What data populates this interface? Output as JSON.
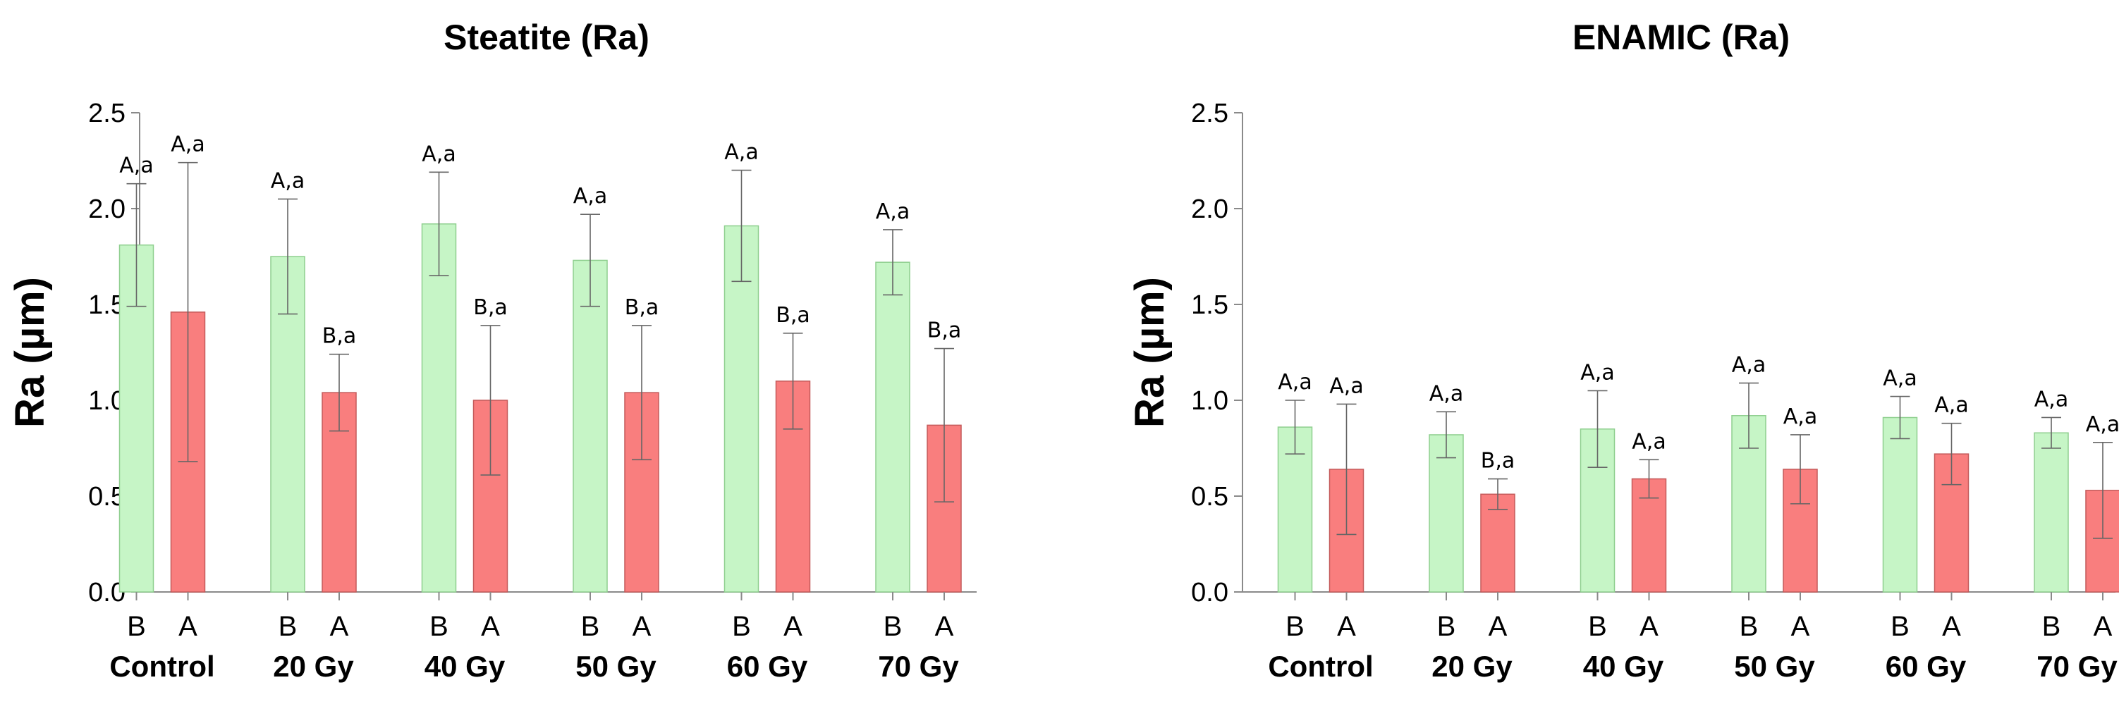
{
  "chart_data": [
    {
      "type": "bar",
      "title": "Steatite (Ra)",
      "ylabel": "Ra  (µm)",
      "xlabel": "",
      "ylim": [
        0,
        2.5
      ],
      "yticks": [
        "0.0",
        "0.5",
        "1.0",
        "1.5",
        "2.0",
        "2.5"
      ],
      "groups": [
        "Control",
        "20 Gy",
        "40 Gy",
        "50 Gy",
        "60 Gy",
        "70 Gy"
      ],
      "series": [
        {
          "name": "B",
          "color": "#c6f5c6",
          "edge": "#8fcf8f",
          "values": [
            1.81,
            1.75,
            1.92,
            1.73,
            1.91,
            1.72
          ],
          "errors": [
            0.32,
            0.3,
            0.27,
            0.24,
            0.29,
            0.17
          ],
          "labels": [
            "A,a",
            "A,a",
            "A,a",
            "A,a",
            "A,a",
            "A,a"
          ]
        },
        {
          "name": "A",
          "color": "#f97e7e",
          "edge": "#c45a5a",
          "values": [
            1.46,
            1.04,
            1.0,
            1.04,
            1.1,
            0.87
          ],
          "errors": [
            0.78,
            0.2,
            0.39,
            0.35,
            0.25,
            0.4
          ],
          "labels": [
            "A,a",
            "B,a",
            "B,a",
            "B,a",
            "B,a",
            "B,a"
          ]
        }
      ]
    },
    {
      "type": "bar",
      "title": "ENAMIC (Ra)",
      "ylabel": "Ra  (µm)",
      "xlabel": "",
      "ylim": [
        0,
        2.5
      ],
      "yticks": [
        "0.0",
        "0.5",
        "1.0",
        "1.5",
        "2.0",
        "2.5"
      ],
      "groups": [
        "Control",
        "20 Gy",
        "40 Gy",
        "50 Gy",
        "60 Gy",
        "70 Gy"
      ],
      "series": [
        {
          "name": "B",
          "color": "#c6f5c6",
          "edge": "#8fcf8f",
          "values": [
            0.86,
            0.82,
            0.85,
            0.92,
            0.91,
            0.83
          ],
          "errors": [
            0.14,
            0.12,
            0.2,
            0.17,
            0.11,
            0.08
          ],
          "labels": [
            "A,a",
            "A,a",
            "A,a",
            "A,a",
            "A,a",
            "A,a"
          ]
        },
        {
          "name": "A",
          "color": "#f97e7e",
          "edge": "#c45a5a",
          "values": [
            0.64,
            0.51,
            0.59,
            0.64,
            0.72,
            0.53
          ],
          "errors": [
            0.34,
            0.08,
            0.1,
            0.18,
            0.16,
            0.25
          ],
          "labels": [
            "A,a",
            "B,a",
            "A,a",
            "A,a",
            "A,a",
            "A,a"
          ]
        }
      ]
    }
  ]
}
